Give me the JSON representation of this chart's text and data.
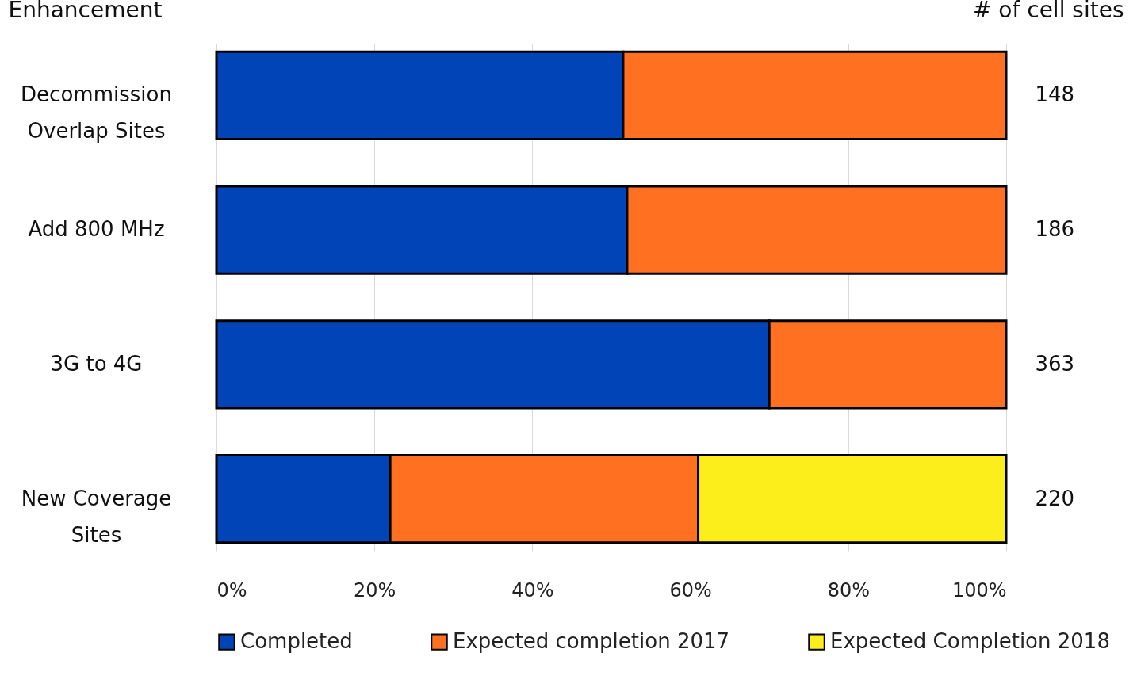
{
  "chart_data": {
    "type": "bar",
    "orientation": "horizontal",
    "stacked": true,
    "ylabel": "Enhancement",
    "y2label": "# of cell sites",
    "categories": [
      "Decommission\nOverlap Sites",
      "Add 800 MHz",
      "3G to 4G",
      "New Coverage\nSites"
    ],
    "series": [
      {
        "name": "Completed",
        "color": "#0044b8",
        "values": [
          51.5,
          52,
          70,
          22
        ]
      },
      {
        "name": "Expected completion 2017",
        "color": "#ff7020",
        "values": [
          48.5,
          48,
          30,
          39
        ]
      },
      {
        "name": "Expected Completion 2018",
        "color": "#fcee1a",
        "values": [
          null,
          null,
          null,
          39
        ]
      }
    ],
    "annotations": [
      "148",
      "186",
      "363",
      "220"
    ],
    "xlim": [
      0,
      100
    ],
    "xticks": [
      {
        "value": 0,
        "label": "0%"
      },
      {
        "value": 20,
        "label": "20%"
      },
      {
        "value": 40,
        "label": "40%"
      },
      {
        "value": 60,
        "label": "60%"
      },
      {
        "value": 80,
        "label": "80%"
      },
      {
        "value": 100,
        "label": "100%"
      }
    ],
    "grid": "x",
    "legend": "bottom"
  }
}
